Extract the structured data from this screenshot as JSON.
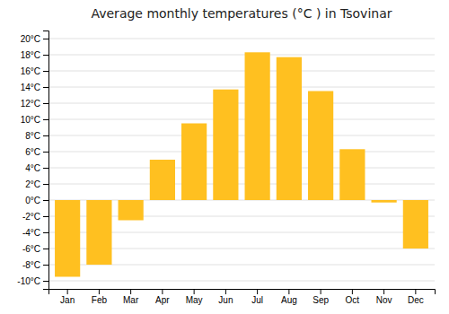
{
  "chart_data": {
    "type": "bar",
    "title": "Average monthly temperatures (°C ) in Tsovinar",
    "categories": [
      "Jan",
      "Feb",
      "Mar",
      "Apr",
      "May",
      "Jun",
      "Jul",
      "Aug",
      "Sep",
      "Oct",
      "Nov",
      "Dec"
    ],
    "values": [
      -9.5,
      -8.0,
      -2.5,
      5.0,
      9.5,
      13.7,
      18.3,
      17.7,
      13.5,
      6.3,
      -0.3,
      -6.0
    ],
    "color": "#FFC020",
    "ylim": [
      -11,
      21
    ],
    "yticks": [
      {
        "value": -10,
        "label": "-10°C"
      },
      {
        "value": -8,
        "label": "-8°C"
      },
      {
        "value": -6,
        "label": "-6°C"
      },
      {
        "value": -4,
        "label": "-4°C"
      },
      {
        "value": -2,
        "label": "-2°C"
      },
      {
        "value": 0,
        "label": "0°C"
      },
      {
        "value": 2,
        "label": "2°C"
      },
      {
        "value": 4,
        "label": "4°C"
      },
      {
        "value": 6,
        "label": "6°C"
      },
      {
        "value": 8,
        "label": "8°C"
      },
      {
        "value": 10,
        "label": "10°C"
      },
      {
        "value": 12,
        "label": "12°C"
      },
      {
        "value": 14,
        "label": "14°C"
      },
      {
        "value": 16,
        "label": "16°C"
      },
      {
        "value": 18,
        "label": "18°C"
      },
      {
        "value": 20,
        "label": "20°C"
      }
    ],
    "grid": true
  }
}
